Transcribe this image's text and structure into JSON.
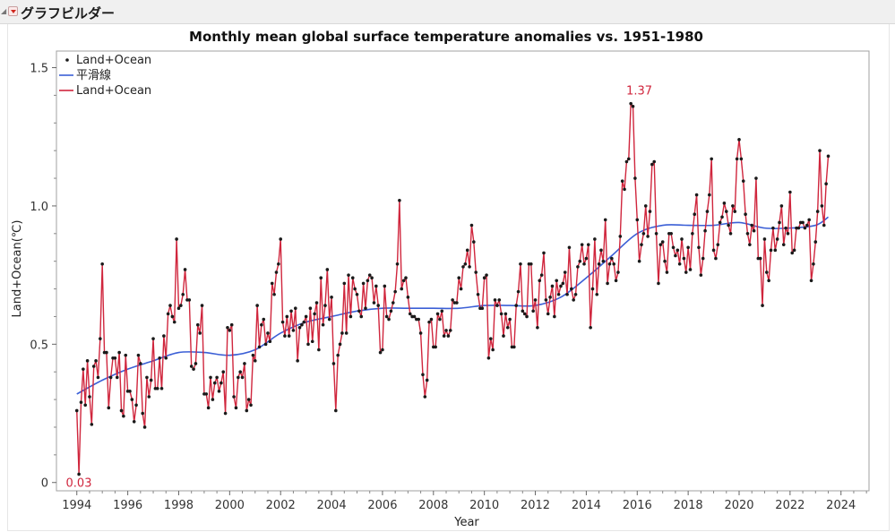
{
  "window": {
    "title": "グラフビルダー",
    "icons": [
      "collapse-triangle-icon",
      "red-triangle-menu-icon"
    ]
  },
  "colors": {
    "line": "#d0263d",
    "smoother": "#3b5fd6",
    "points": "#1a1a1a",
    "frame": "#a0a0a0",
    "callout": "#d0263d"
  },
  "chart_data": {
    "type": "line",
    "title": "Monthly mean global surface temperature anomalies vs. 1951-1980",
    "xlabel": "Year",
    "ylabel": "Land+Ocean(℃)",
    "xlim": [
      1993.2,
      2025.1
    ],
    "ylim": [
      -0.03,
      1.56
    ],
    "xticks": [
      1994,
      1996,
      1998,
      2000,
      2002,
      2004,
      2006,
      2008,
      2010,
      2012,
      2014,
      2016,
      2018,
      2020,
      2022,
      2024
    ],
    "yticks": [
      0,
      0.5,
      1.0,
      1.5
    ],
    "ytick_labels": [
      "0",
      "0.5",
      "1.0",
      "1.5"
    ],
    "grid": false,
    "legend_position": "top-left",
    "legend": [
      {
        "label": "Land+Ocean",
        "kind": "points"
      },
      {
        "label": "平滑線",
        "kind": "smoother"
      },
      {
        "label": "Land+Ocean",
        "kind": "line"
      }
    ],
    "annotations": [
      {
        "text": "0.03",
        "x": 1994.08,
        "y": 0.03
      },
      {
        "text": "1.37",
        "x": 2016.08,
        "y": 1.37
      }
    ],
    "start_year": 1994,
    "start_month": 1,
    "values": [
      0.26,
      0.03,
      0.29,
      0.41,
      0.28,
      0.44,
      0.31,
      0.21,
      0.42,
      0.44,
      0.38,
      0.52,
      0.79,
      0.47,
      0.47,
      0.27,
      0.38,
      0.45,
      0.45,
      0.38,
      0.47,
      0.26,
      0.24,
      0.46,
      0.33,
      0.33,
      0.3,
      0.22,
      0.28,
      0.46,
      0.43,
      0.25,
      0.2,
      0.38,
      0.31,
      0.37,
      0.52,
      0.34,
      0.34,
      0.45,
      0.34,
      0.53,
      0.45,
      0.61,
      0.64,
      0.6,
      0.58,
      0.88,
      0.63,
      0.64,
      0.68,
      0.77,
      0.66,
      0.66,
      0.42,
      0.41,
      0.43,
      0.57,
      0.54,
      0.64,
      0.32,
      0.32,
      0.27,
      0.38,
      0.3,
      0.36,
      0.38,
      0.33,
      0.36,
      0.4,
      0.25,
      0.56,
      0.55,
      0.57,
      0.31,
      0.27,
      0.38,
      0.4,
      0.38,
      0.43,
      0.26,
      0.3,
      0.28,
      0.46,
      0.44,
      0.64,
      0.49,
      0.57,
      0.59,
      0.5,
      0.54,
      0.51,
      0.72,
      0.68,
      0.76,
      0.79,
      0.88,
      0.58,
      0.53,
      0.6,
      0.53,
      0.62,
      0.55,
      0.63,
      0.44,
      0.56,
      0.57,
      0.58,
      0.6,
      0.5,
      0.63,
      0.51,
      0.61,
      0.65,
      0.48,
      0.74,
      0.57,
      0.64,
      0.77,
      0.59,
      0.67,
      0.43,
      0.26,
      0.46,
      0.5,
      0.54,
      0.72,
      0.54,
      0.75,
      0.6,
      0.74,
      0.7,
      0.68,
      0.62,
      0.6,
      0.72,
      0.63,
      0.73,
      0.75,
      0.74,
      0.65,
      0.71,
      0.64,
      0.47,
      0.48,
      0.71,
      0.6,
      0.59,
      0.62,
      0.65,
      0.69,
      0.79,
      1.02,
      0.7,
      0.73,
      0.74,
      0.67,
      0.61,
      0.6,
      0.6,
      0.59,
      0.59,
      0.54,
      0.39,
      0.31,
      0.37,
      0.58,
      0.59,
      0.49,
      0.49,
      0.61,
      0.59,
      0.62,
      0.53,
      0.55,
      0.53,
      0.55,
      0.66,
      0.65,
      0.65,
      0.74,
      0.7,
      0.78,
      0.79,
      0.84,
      0.78,
      0.93,
      0.87,
      0.76,
      0.68,
      0.63,
      0.63,
      0.74,
      0.75,
      0.45,
      0.52,
      0.48,
      0.66,
      0.64,
      0.66,
      0.61,
      0.53,
      0.61,
      0.56,
      0.59,
      0.49,
      0.49,
      0.64,
      0.69,
      0.79,
      0.62,
      0.61,
      0.6,
      0.79,
      0.79,
      0.62,
      0.66,
      0.56,
      0.73,
      0.75,
      0.83,
      0.66,
      0.61,
      0.67,
      0.71,
      0.6,
      0.73,
      0.68,
      0.71,
      0.72,
      0.76,
      0.68,
      0.85,
      0.7,
      0.66,
      0.68,
      0.78,
      0.8,
      0.86,
      0.79,
      0.81,
      0.86,
      0.56,
      0.7,
      0.88,
      0.68,
      0.79,
      0.84,
      0.8,
      0.95,
      0.72,
      0.79,
      0.81,
      0.79,
      0.73,
      0.76,
      0.89,
      1.09,
      1.06,
      1.16,
      1.17,
      1.37,
      1.36,
      1.1,
      0.95,
      0.8,
      0.86,
      0.9,
      1.0,
      0.89,
      0.98,
      1.15,
      1.16,
      0.9,
      0.72,
      0.86,
      0.87,
      0.8,
      0.76,
      0.9,
      0.9,
      0.85,
      0.82,
      0.84,
      0.79,
      0.88,
      0.81,
      0.76,
      0.85,
      0.77,
      0.9,
      0.97,
      1.04,
      0.85,
      0.75,
      0.81,
      0.91,
      0.98,
      1.04,
      1.17,
      0.84,
      0.81,
      0.86,
      0.94,
      0.96,
      1.01,
      0.98,
      0.93,
      0.9,
      1.0,
      0.98,
      1.17,
      1.24,
      1.17,
      1.09,
      0.97,
      0.9,
      0.86,
      0.93,
      0.91,
      1.1,
      0.81,
      0.81,
      0.64,
      0.88,
      0.76,
      0.73,
      0.84,
      0.92,
      0.84,
      0.88,
      0.94,
      1.0,
      0.86,
      0.92,
      0.9,
      1.05,
      0.83,
      0.84,
      0.92,
      0.92,
      0.94,
      0.94,
      0.92,
      0.93,
      0.95,
      0.73,
      0.79,
      0.87,
      0.98,
      1.2,
      1.0,
      0.93,
      1.08,
      1.18
    ],
    "smoother": {
      "x": [
        1994.0,
        1995.0,
        1996.0,
        1997.0,
        1998.0,
        1999.0,
        2000.0,
        2001.0,
        2002.0,
        2003.0,
        2004.0,
        2005.0,
        2006.0,
        2007.0,
        2008.0,
        2009.0,
        2010.0,
        2011.0,
        2012.0,
        2013.0,
        2014.0,
        2015.0,
        2016.0,
        2017.0,
        2018.0,
        2019.0,
        2020.0,
        2021.0,
        2022.0,
        2023.0,
        2023.5
      ],
      "y": [
        0.32,
        0.37,
        0.41,
        0.44,
        0.47,
        0.47,
        0.46,
        0.48,
        0.54,
        0.58,
        0.6,
        0.62,
        0.63,
        0.63,
        0.63,
        0.63,
        0.64,
        0.64,
        0.64,
        0.67,
        0.74,
        0.82,
        0.9,
        0.93,
        0.93,
        0.93,
        0.94,
        0.92,
        0.92,
        0.93,
        0.96
      ]
    }
  }
}
